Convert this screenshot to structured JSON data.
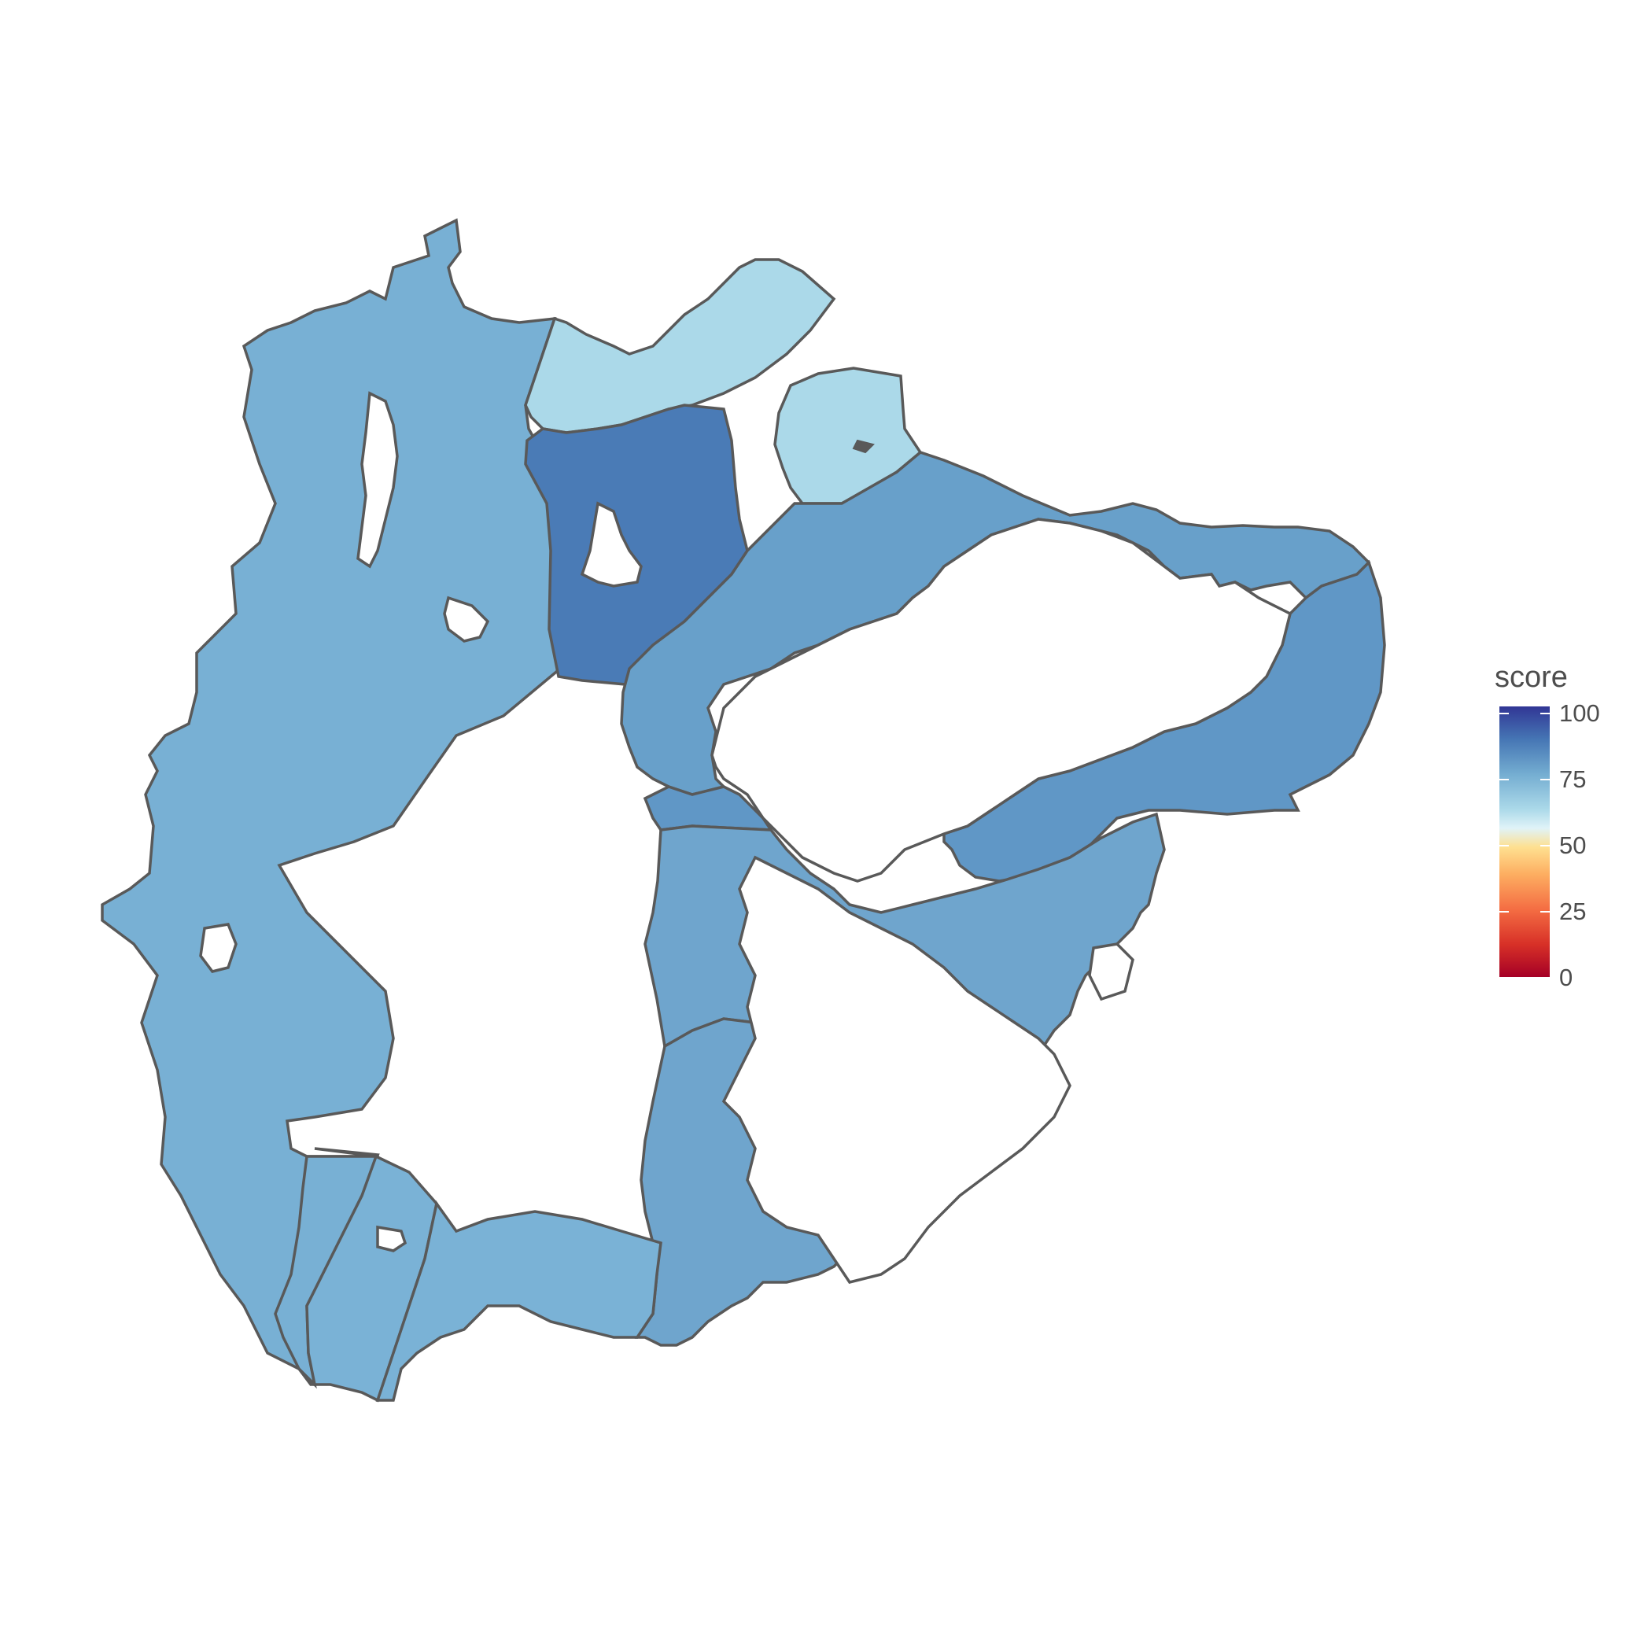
{
  "legend": {
    "title": "score",
    "ticks": [
      {
        "label": "100",
        "value": 100
      },
      {
        "label": "75",
        "value": 75
      },
      {
        "label": "50",
        "value": 50
      },
      {
        "label": "25",
        "value": 25
      },
      {
        "label": "0",
        "value": 0
      }
    ],
    "scale_colors": [
      "#313695",
      "#4575b4",
      "#74add1",
      "#abd9e9",
      "#e0f3f8",
      "#fee090",
      "#fdae61",
      "#f46d43",
      "#d73027",
      "#a50026"
    ]
  },
  "colors": {
    "outline": "#595959",
    "land": "#ffffff",
    "background": "#ffffff"
  },
  "chart_data": {
    "type": "choropleth",
    "title": "",
    "fill_variable": "score",
    "scale_range": [
      0,
      100
    ],
    "regions": [
      {
        "id": "region-west-large",
        "score": 78,
        "color": "#78b0d4"
      },
      {
        "id": "region-north-light-a",
        "score": 70,
        "color": "#abd9e9"
      },
      {
        "id": "region-north-light-b",
        "score": 70,
        "color": "#abd9e9"
      },
      {
        "id": "region-north-dark",
        "score": 88,
        "color": "#4a7bb6"
      },
      {
        "id": "region-greenland-north-belt",
        "score": 84,
        "color": "#68a0ca"
      },
      {
        "id": "region-greenland-east",
        "score": 85,
        "color": "#6097c6"
      },
      {
        "id": "region-greenland-south",
        "score": 85,
        "color": "#6097c6"
      },
      {
        "id": "region-east-middle",
        "score": 84,
        "color": "#6fa5cd"
      },
      {
        "id": "region-east-south",
        "score": 83,
        "color": "#6fa5cd"
      },
      {
        "id": "region-south-a",
        "score": 80,
        "color": "#78b0d4"
      },
      {
        "id": "region-south-b",
        "score": 80,
        "color": "#7ab2d6"
      },
      {
        "id": "region-south-c",
        "score": 79,
        "color": "#7ab2d6"
      }
    ]
  }
}
